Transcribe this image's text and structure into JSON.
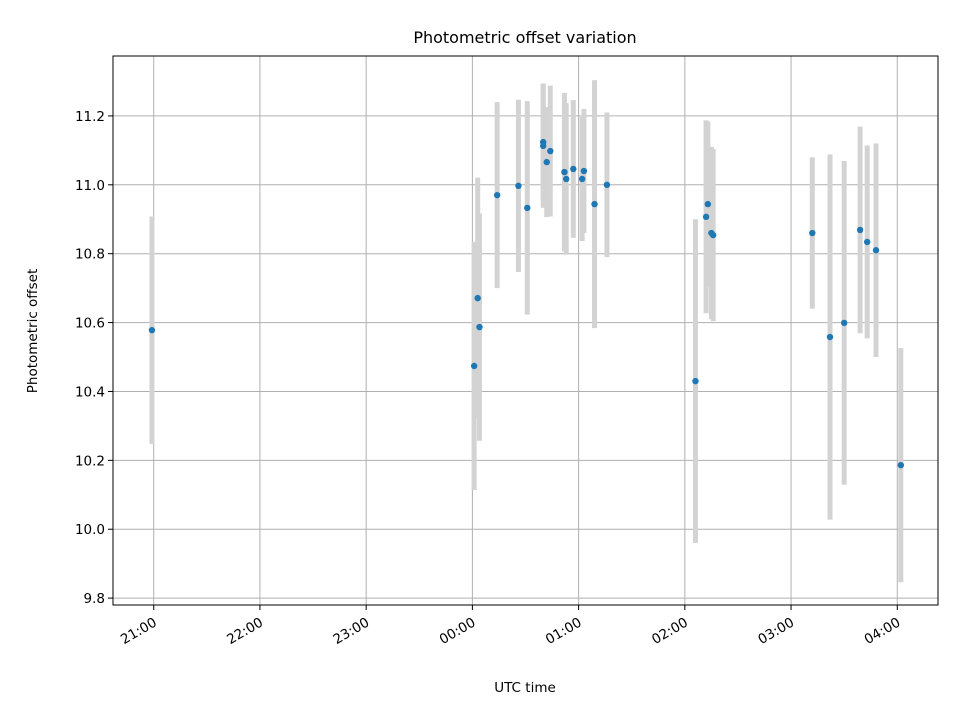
{
  "chart_data": {
    "type": "scatter",
    "title": "Photometric offset variation",
    "xlabel": "UTC time",
    "ylabel": "Photometric offset",
    "xlim": [
      "20:37",
      "04:23"
    ],
    "ylim": [
      9.78,
      11.374
    ],
    "grid": true,
    "x_ticks": [
      "21:00",
      "22:00",
      "23:00",
      "00:00",
      "01:00",
      "02:00",
      "03:00",
      "04:00"
    ],
    "y_ticks": [
      "9.8",
      "10.0",
      "10.2",
      "10.4",
      "10.6",
      "10.8",
      "11.0",
      "11.2"
    ],
    "point_color": "#1f77b4",
    "errorbar_color": "#d3d3d3",
    "points": [
      {
        "t": "20:59",
        "y": 10.578,
        "err": 0.33
      },
      {
        "t": "00:01",
        "y": 10.474,
        "err": 0.36
      },
      {
        "t": "00:03",
        "y": 10.671,
        "err": 0.35
      },
      {
        "t": "00:04",
        "y": 10.587,
        "err": 0.33
      },
      {
        "t": "00:14",
        "y": 10.97,
        "err": 0.27
      },
      {
        "t": "00:26",
        "y": 10.997,
        "err": 0.25
      },
      {
        "t": "00:31",
        "y": 10.933,
        "err": 0.31
      },
      {
        "t": "00:40",
        "y": 11.124,
        "err": 0.17
      },
      {
        "t": "00:40",
        "y": 11.113,
        "err": 0.18
      },
      {
        "t": "00:42",
        "y": 11.066,
        "err": 0.16
      },
      {
        "t": "00:44",
        "y": 11.098,
        "err": 0.19
      },
      {
        "t": "00:52",
        "y": 11.037,
        "err": 0.23
      },
      {
        "t": "00:53",
        "y": 11.017,
        "err": 0.22
      },
      {
        "t": "00:57",
        "y": 11.046,
        "err": 0.2
      },
      {
        "t": "01:02",
        "y": 11.017,
        "err": 0.18
      },
      {
        "t": "01:03",
        "y": 11.04,
        "err": 0.18
      },
      {
        "t": "01:09",
        "y": 10.944,
        "err": 0.36
      },
      {
        "t": "01:16",
        "y": 11.0,
        "err": 0.21
      },
      {
        "t": "02:06",
        "y": 10.43,
        "err": 0.47
      },
      {
        "t": "02:12",
        "y": 10.907,
        "err": 0.28
      },
      {
        "t": "02:13",
        "y": 10.944,
        "err": 0.24
      },
      {
        "t": "02:15",
        "y": 10.86,
        "err": 0.25
      },
      {
        "t": "02:16",
        "y": 10.854,
        "err": 0.25
      },
      {
        "t": "03:12",
        "y": 10.86,
        "err": 0.22
      },
      {
        "t": "03:22",
        "y": 10.558,
        "err": 0.53
      },
      {
        "t": "03:30",
        "y": 10.599,
        "err": 0.47
      },
      {
        "t": "03:39",
        "y": 10.869,
        "err": 0.3
      },
      {
        "t": "03:43",
        "y": 10.834,
        "err": 0.28
      },
      {
        "t": "03:48",
        "y": 10.81,
        "err": 0.31
      },
      {
        "t": "04:02",
        "y": 10.186,
        "err": 0.34
      }
    ]
  }
}
